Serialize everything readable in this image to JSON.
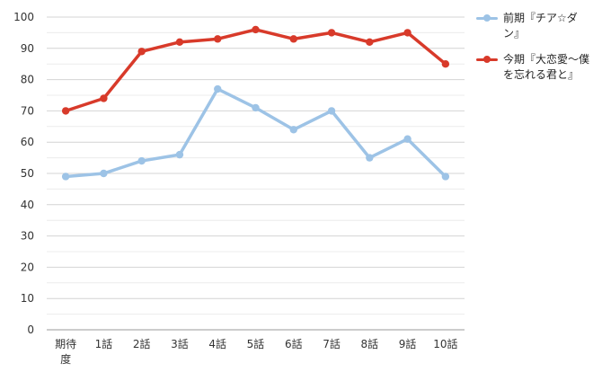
{
  "chart_data": {
    "type": "line",
    "categories": [
      "期待度",
      "1話",
      "2話",
      "3話",
      "4話",
      "5話",
      "6話",
      "7話",
      "8話",
      "9話",
      "10話"
    ],
    "y_ticks": [
      "0",
      "10",
      "20",
      "30",
      "40",
      "50",
      "60",
      "70",
      "80",
      "90",
      "100"
    ],
    "ylim": [
      0,
      100
    ],
    "grid": true,
    "legend_position": "right",
    "series": [
      {
        "name": "前期『チア☆ダン』",
        "color": "#9dc3e6",
        "values": [
          49,
          50,
          54,
          56,
          77,
          71,
          64,
          70,
          55,
          61,
          49
        ]
      },
      {
        "name": "今期『大恋愛〜僕を忘れる君と』",
        "color": "#d83a2a",
        "values": [
          70,
          74,
          89,
          92,
          93,
          96,
          93,
          95,
          92,
          95,
          85
        ]
      }
    ]
  }
}
